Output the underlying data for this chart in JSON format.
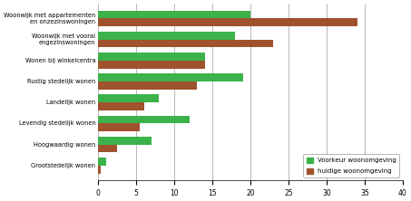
{
  "categories": [
    "Grootstedelijk wonen",
    "Hoogwaardig wonen",
    "Levendig stedelijk wonen",
    "Landelijk wonen",
    "Rustig stedelijk wonen",
    "Wonen bij winkelcentra",
    "Woonwijk met vooral\nengezinswoningen",
    "Woonwijk met appartementen\nen onzezinswoningen"
  ],
  "voorkeur": [
    1,
    7,
    12,
    8,
    19,
    14,
    18,
    20
  ],
  "huidig": [
    0.3,
    2.5,
    5.5,
    6,
    13,
    14,
    23,
    34
  ],
  "color_voorkeur": "#3cb34a",
  "color_huidig": "#a0522d",
  "xlim": [
    0,
    40
  ],
  "xticks": [
    0,
    5,
    10,
    15,
    20,
    25,
    30,
    35,
    40
  ],
  "legend_voorkeur": "Voorkeur woonomgeving",
  "legend_huidig": "huidige woonomgeving",
  "bar_height": 0.38,
  "figsize": [
    4.53,
    2.22
  ],
  "dpi": 100
}
